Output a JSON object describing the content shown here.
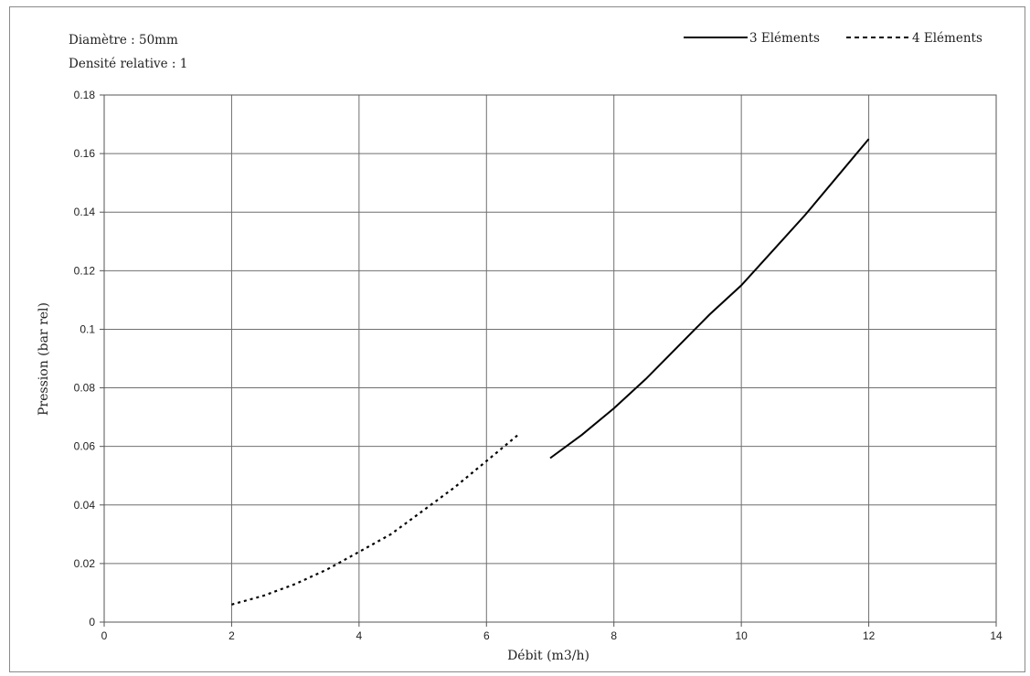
{
  "chart_data": {
    "type": "line",
    "annotations": [
      "Diamètre : 50mm",
      "Densité relative : 1"
    ],
    "xlabel": "Débit (m3/h)",
    "ylabel": "Pression (bar rel)",
    "xlim": [
      0,
      14
    ],
    "ylim": [
      0,
      0.18
    ],
    "xticks": [
      0,
      2,
      4,
      6,
      8,
      10,
      12,
      14
    ],
    "xtick_labels": [
      "0",
      "2",
      "4",
      "6",
      "8",
      "10",
      "12",
      "14"
    ],
    "yticks": [
      0,
      0.02,
      0.04,
      0.06,
      0.08,
      0.1,
      0.12,
      0.14,
      0.16,
      0.18
    ],
    "ytick_labels": [
      "0",
      "0.02",
      "0.04",
      "0.06",
      "0.08",
      "0.1",
      "0.12",
      "0.14",
      "0.16",
      "0.18"
    ],
    "grid": true,
    "legend_position": "top-right",
    "series": [
      {
        "name": "3 Eléments",
        "style": "solid",
        "color": "#000000",
        "x": [
          7,
          7.5,
          8,
          8.5,
          9,
          9.5,
          10,
          10.5,
          11,
          11.5,
          12
        ],
        "y": [
          0.056,
          0.064,
          0.073,
          0.083,
          0.094,
          0.105,
          0.115,
          0.127,
          0.139,
          0.152,
          0.165
        ]
      },
      {
        "name": "4 Eléments",
        "style": "dotted",
        "color": "#000000",
        "x": [
          2,
          2.5,
          3,
          3.5,
          4,
          4.5,
          5,
          5.5,
          6,
          6.5
        ],
        "y": [
          0.006,
          0.009,
          0.013,
          0.018,
          0.024,
          0.03,
          0.038,
          0.046,
          0.055,
          0.064
        ]
      }
    ]
  }
}
